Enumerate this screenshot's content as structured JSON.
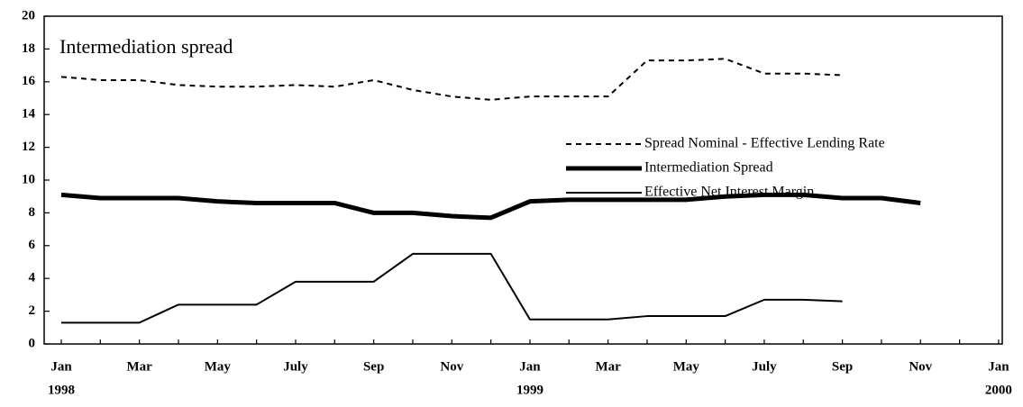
{
  "chart_data": {
    "type": "line",
    "annotation": "Intermediation spread",
    "categories": [
      "Jan",
      null,
      "Mar",
      null,
      "May",
      null,
      "July",
      null,
      "Sep",
      null,
      "Nov",
      null,
      "Jan",
      null,
      "Mar",
      null,
      "May",
      null,
      "July",
      null,
      "Sep",
      null,
      "Nov",
      null,
      "Jan"
    ],
    "years": [
      "1998",
      null,
      null,
      null,
      null,
      null,
      null,
      null,
      null,
      null,
      null,
      null,
      "1999",
      null,
      null,
      null,
      null,
      null,
      null,
      null,
      null,
      null,
      null,
      null,
      "2000"
    ],
    "series": [
      {
        "name": "Spread Nominal - Effective Lending Rate",
        "color": "#000000",
        "style": "dashed",
        "values": [
          16.3,
          16.1,
          16.1,
          15.8,
          15.7,
          15.7,
          15.8,
          15.7,
          16.1,
          15.5,
          15.1,
          14.9,
          15.1,
          15.1,
          15.1,
          17.3,
          17.3,
          17.4,
          16.5,
          16.5,
          16.4,
          null,
          null,
          null,
          null
        ]
      },
      {
        "name": "Intermediation Spread",
        "color": "#000000",
        "style": "thick",
        "values": [
          9.1,
          8.9,
          8.9,
          8.9,
          8.7,
          8.6,
          8.6,
          8.6,
          8.0,
          8.0,
          7.8,
          7.7,
          8.7,
          8.8,
          8.8,
          8.8,
          8.8,
          9.0,
          9.1,
          9.1,
          8.9,
          8.9,
          8.6,
          null,
          null
        ]
      },
      {
        "name": "Effective Net Interest Margin",
        "color": "#000000",
        "style": "solid",
        "values": [
          1.3,
          1.3,
          1.3,
          2.4,
          2.4,
          2.4,
          3.8,
          3.8,
          3.8,
          5.5,
          5.5,
          5.5,
          1.5,
          1.5,
          1.5,
          1.7,
          1.7,
          1.7,
          2.7,
          2.7,
          2.6,
          null,
          null,
          null,
          null
        ]
      }
    ],
    "ylim": [
      0,
      20
    ],
    "yticks": [
      0,
      2,
      4,
      6,
      8,
      10,
      12,
      14,
      16,
      18,
      20
    ],
    "grid": false,
    "legend_position": "right"
  }
}
